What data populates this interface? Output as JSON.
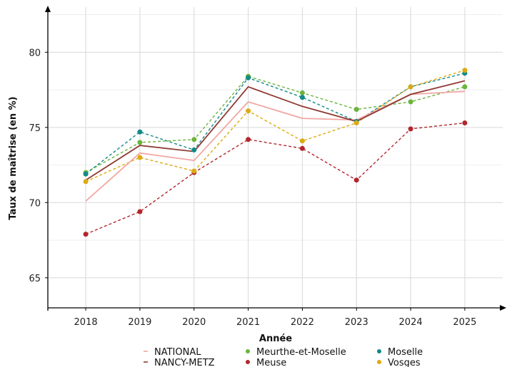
{
  "chart_data": {
    "type": "line",
    "xlabel": "Année",
    "ylabel": "Taux de maîtrise (en %)",
    "x": [
      2018,
      2019,
      2020,
      2021,
      2022,
      2023,
      2024,
      2025
    ],
    "xlim": [
      2017.3,
      2025.7
    ],
    "ylim": [
      63,
      83
    ],
    "yticks": [
      65,
      70,
      75,
      80
    ],
    "grid": true,
    "legend_position": "bottom",
    "series": [
      {
        "name": "NATIONAL",
        "style": "solid",
        "markers": false,
        "color": "#f2a7a2",
        "values": [
          70.1,
          73.3,
          72.8,
          76.7,
          75.6,
          75.5,
          77.2,
          77.4
        ]
      },
      {
        "name": "NANCY-METZ",
        "style": "solid",
        "markers": false,
        "color": "#8f3a33",
        "values": [
          71.5,
          73.8,
          73.4,
          77.7,
          76.4,
          75.4,
          77.2,
          78.1
        ]
      },
      {
        "name": "Meurthe-et-Moselle",
        "style": "dashed",
        "markers": true,
        "color": "#6ab43a",
        "values": [
          72.0,
          74.0,
          74.2,
          78.4,
          77.3,
          76.2,
          76.7,
          77.7
        ]
      },
      {
        "name": "Meuse",
        "style": "dashed",
        "markers": true,
        "color": "#b3262d",
        "values": [
          67.9,
          69.4,
          72.0,
          74.2,
          73.6,
          71.5,
          74.9,
          75.3
        ]
      },
      {
        "name": "Moselle",
        "style": "dashed",
        "markers": true,
        "color": "#138a8a",
        "values": [
          71.9,
          74.7,
          73.5,
          78.3,
          77.0,
          75.4,
          77.7,
          78.6
        ]
      },
      {
        "name": "Vosges",
        "style": "dashed",
        "markers": true,
        "color": "#dcaa12",
        "values": [
          71.4,
          73.0,
          72.1,
          76.1,
          74.1,
          75.3,
          77.7,
          78.8
        ]
      }
    ]
  }
}
